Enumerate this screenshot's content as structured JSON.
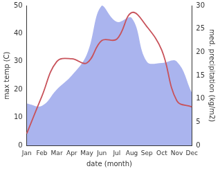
{
  "chart_data": {
    "type": "line",
    "x_label": "date (month)",
    "y_label": "max temp (C)",
    "y2_label": "med. precipitation (kg/m2)",
    "categories": [
      "Jan",
      "Feb",
      "Mar",
      "Apr",
      "May",
      "Jun",
      "Jul",
      "Aug",
      "Sep",
      "Oct",
      "Nov",
      "Dec"
    ],
    "series": [
      {
        "name": "med. precipitation (kg/m2)",
        "type": "area",
        "color": "#aab4ee",
        "axis": "y2",
        "values": [
          9,
          8.5,
          12,
          15,
          19.5,
          30,
          26.5,
          27.3,
          18,
          17.7,
          18,
          11.3
        ]
      },
      {
        "name": "max temp (C)",
        "type": "line",
        "color": "#c8525a",
        "values": [
          4.3,
          17.5,
          30,
          31,
          29.5,
          37.5,
          38,
          47.5,
          42.5,
          34,
          16,
          13.8
        ]
      }
    ],
    "ylim": [
      0,
      50
    ],
    "yticks": [
      0,
      10,
      20,
      30,
      40,
      50
    ],
    "y2lim": [
      0,
      30
    ],
    "y2ticks": [
      0,
      5,
      10,
      15,
      20,
      25,
      30
    ],
    "grid": false
  }
}
